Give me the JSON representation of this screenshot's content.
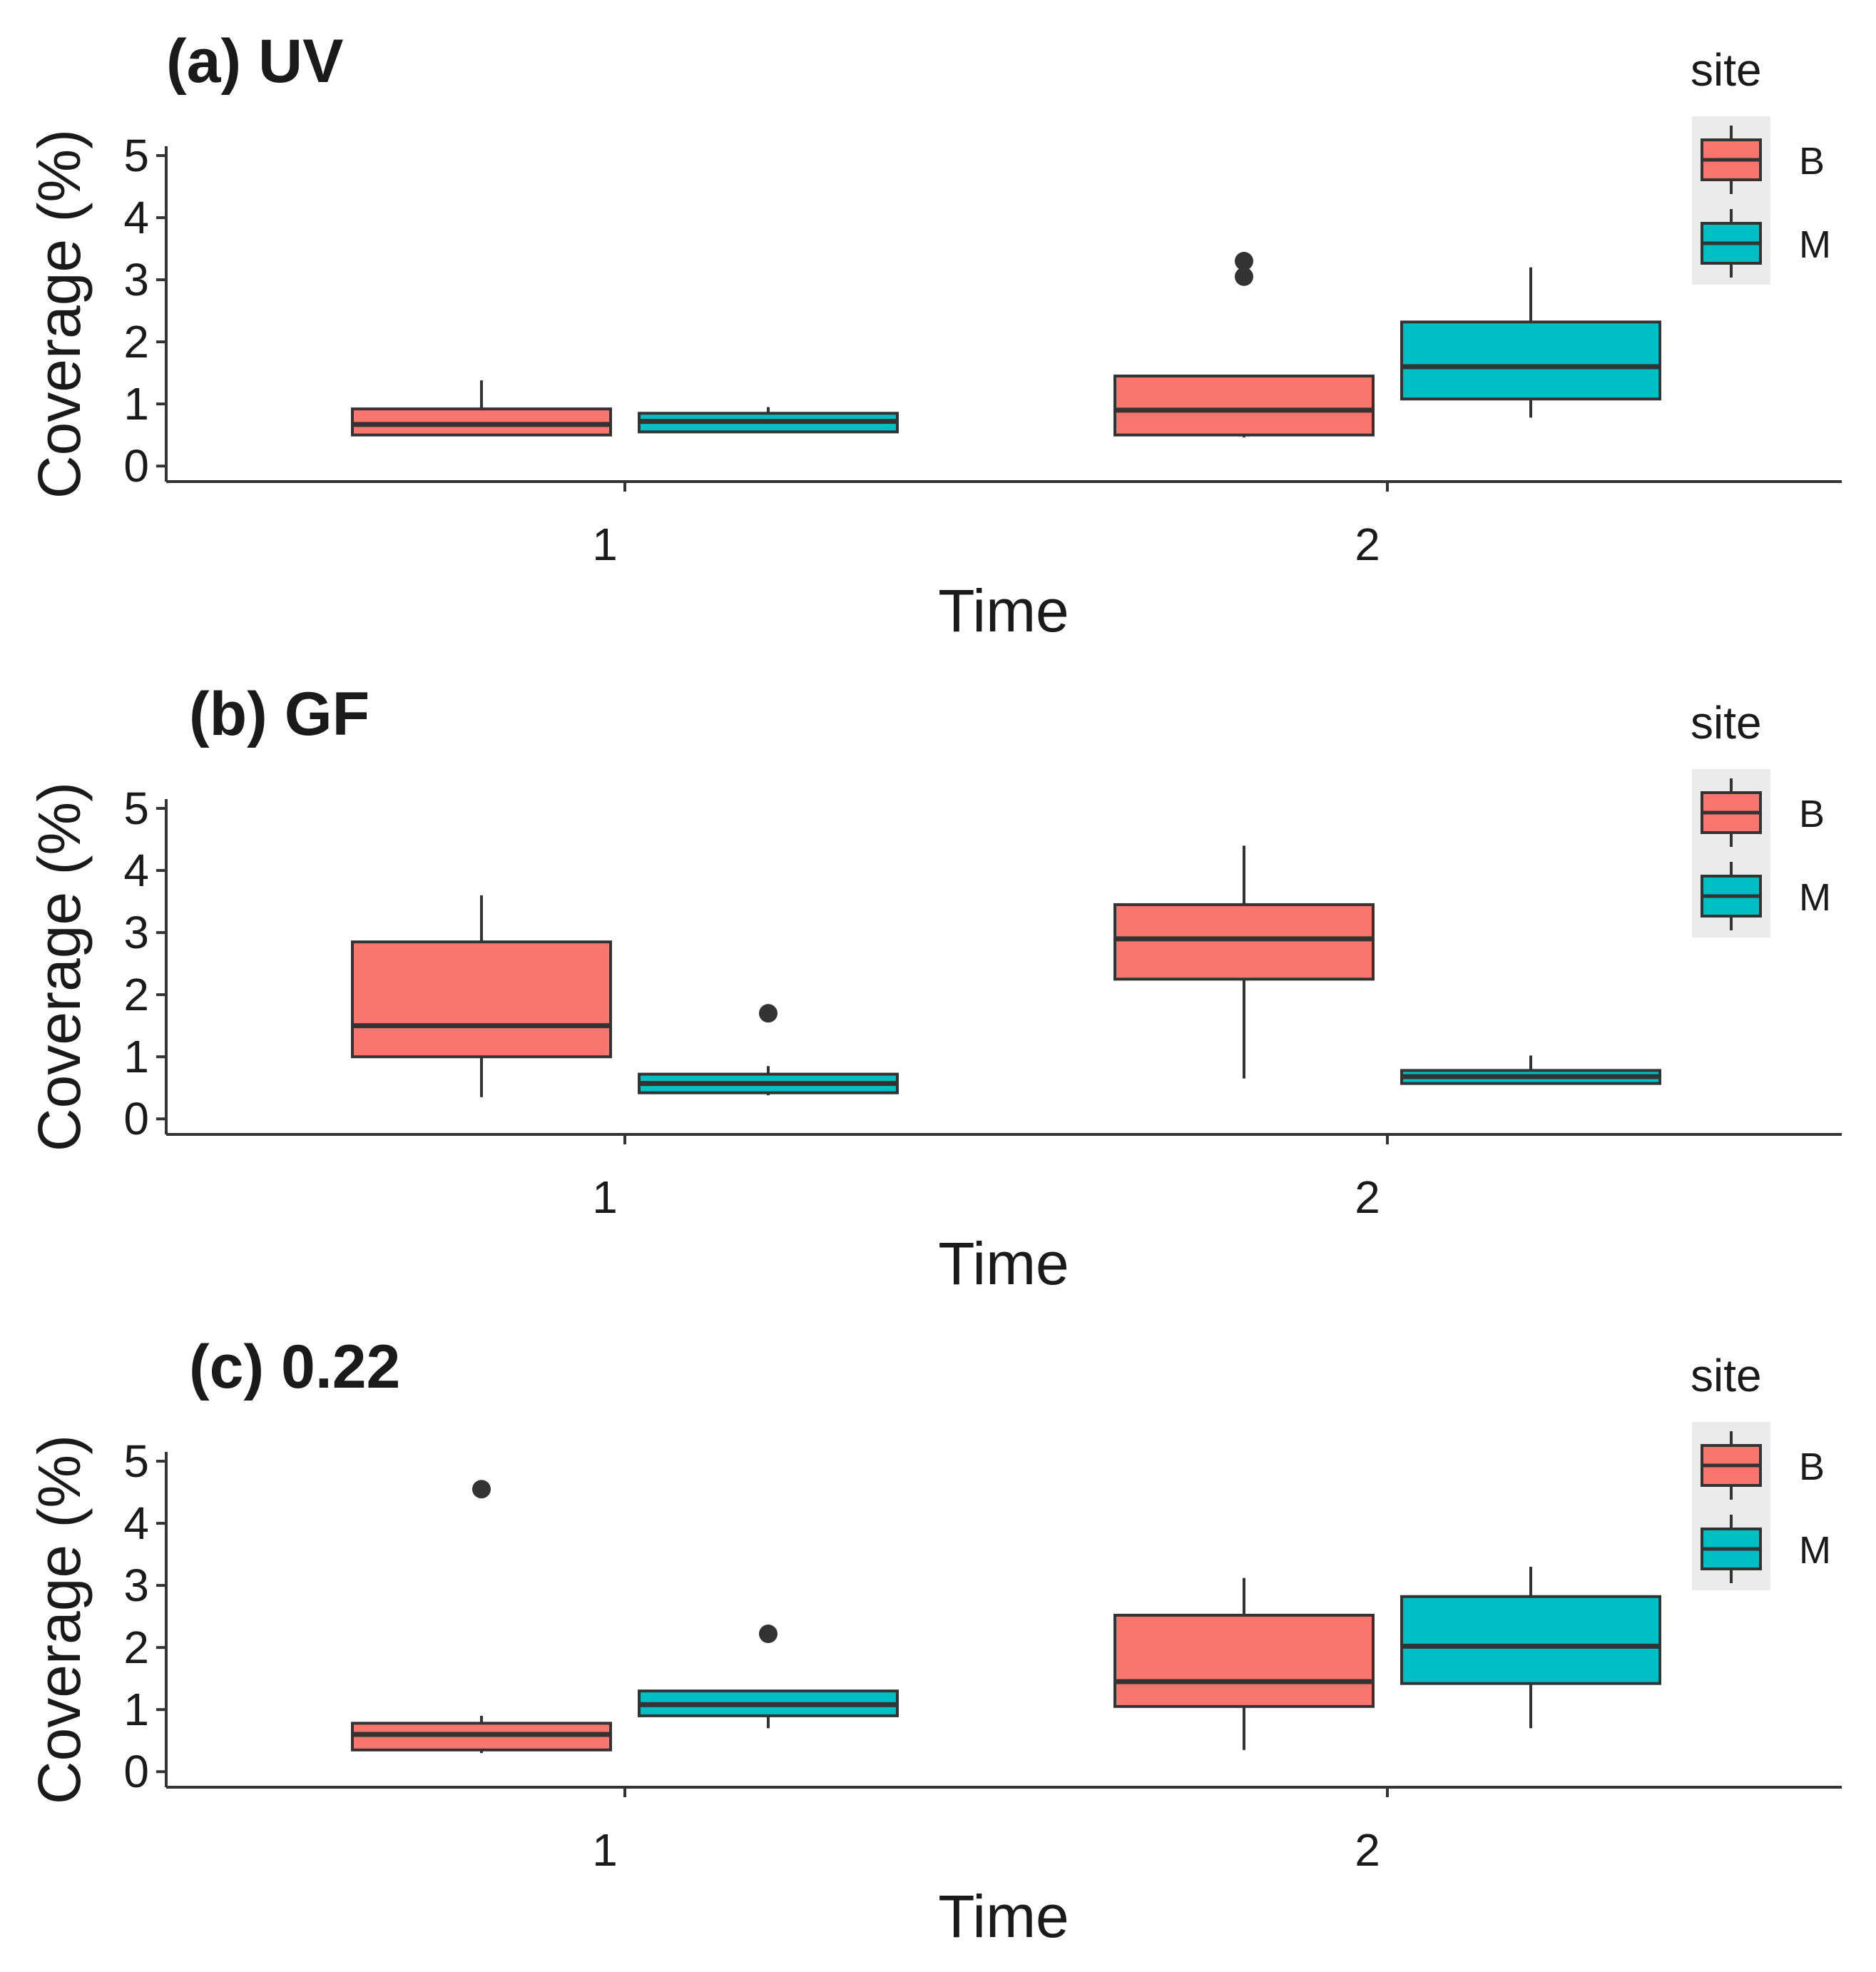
{
  "figure": {
    "title": ""
  },
  "chart_data": [
    {
      "type": "boxplot",
      "title": "(a) UV",
      "xlabel": "Time",
      "ylabel": "Coverage (%)",
      "categories": [
        "1",
        "2"
      ],
      "ylim": [
        -0.25,
        5.15
      ],
      "yticks": [
        0,
        1,
        2,
        3,
        4,
        5
      ],
      "legend": {
        "title": "site",
        "position": "top-right",
        "entries": [
          "B",
          "M"
        ]
      },
      "series": [
        {
          "name": "B",
          "color": "#F8766D",
          "boxes": [
            {
              "category": "1",
              "whisker_low": 0.48,
              "q1": 0.5,
              "median": 0.67,
              "q3": 0.92,
              "whisker_high": 1.38,
              "outliers": []
            },
            {
              "category": "2",
              "whisker_low": 0.46,
              "q1": 0.5,
              "median": 0.9,
              "q3": 1.45,
              "whisker_high": 1.45,
              "outliers": [
                3.05,
                3.3
              ]
            }
          ]
        },
        {
          "name": "M",
          "color": "#00BFC4",
          "boxes": [
            {
              "category": "1",
              "whisker_low": 0.55,
              "q1": 0.55,
              "median": 0.72,
              "q3": 0.85,
              "whisker_high": 0.95,
              "outliers": []
            },
            {
              "category": "2",
              "whisker_low": 0.78,
              "q1": 1.08,
              "median": 1.6,
              "q3": 2.32,
              "whisker_high": 3.2,
              "outliers": []
            }
          ]
        }
      ]
    },
    {
      "type": "boxplot",
      "title": "(b) GF",
      "xlabel": "Time",
      "ylabel": "Coverage (%)",
      "categories": [
        "1",
        "2"
      ],
      "ylim": [
        -0.25,
        5.15
      ],
      "yticks": [
        0,
        1,
        2,
        3,
        4,
        5
      ],
      "legend": {
        "title": "site",
        "position": "top-right",
        "entries": [
          "B",
          "M"
        ]
      },
      "series": [
        {
          "name": "B",
          "color": "#F8766D",
          "boxes": [
            {
              "category": "1",
              "whisker_low": 0.35,
              "q1": 1.0,
              "median": 1.5,
              "q3": 2.85,
              "whisker_high": 3.6,
              "outliers": []
            },
            {
              "category": "2",
              "whisker_low": 0.65,
              "q1": 2.25,
              "median": 2.9,
              "q3": 3.45,
              "whisker_high": 4.4,
              "outliers": []
            }
          ]
        },
        {
          "name": "M",
          "color": "#00BFC4",
          "boxes": [
            {
              "category": "1",
              "whisker_low": 0.38,
              "q1": 0.42,
              "median": 0.57,
              "q3": 0.72,
              "whisker_high": 0.85,
              "outliers": [
                1.7
              ]
            },
            {
              "category": "2",
              "whisker_low": 0.55,
              "q1": 0.57,
              "median": 0.68,
              "q3": 0.78,
              "whisker_high": 1.02,
              "outliers": []
            }
          ]
        }
      ]
    },
    {
      "type": "boxplot",
      "title": "(c) 0.22",
      "xlabel": "Time",
      "ylabel": "Coverage (%)",
      "categories": [
        "1",
        "2"
      ],
      "ylim": [
        -0.25,
        5.15
      ],
      "yticks": [
        0,
        1,
        2,
        3,
        4,
        5
      ],
      "legend": {
        "title": "site",
        "position": "top-right",
        "entries": [
          "B",
          "M"
        ]
      },
      "series": [
        {
          "name": "B",
          "color": "#F8766D",
          "boxes": [
            {
              "category": "1",
              "whisker_low": 0.3,
              "q1": 0.35,
              "median": 0.6,
              "q3": 0.78,
              "whisker_high": 0.9,
              "outliers": [
                4.55
              ]
            },
            {
              "category": "2",
              "whisker_low": 0.35,
              "q1": 1.05,
              "median": 1.45,
              "q3": 2.52,
              "whisker_high": 3.12,
              "outliers": []
            }
          ]
        },
        {
          "name": "M",
          "color": "#00BFC4",
          "boxes": [
            {
              "category": "1",
              "whisker_low": 0.7,
              "q1": 0.9,
              "median": 1.08,
              "q3": 1.3,
              "whisker_high": 1.3,
              "outliers": [
                2.22
              ]
            },
            {
              "category": "2",
              "whisker_low": 0.7,
              "q1": 1.42,
              "median": 2.02,
              "q3": 2.82,
              "whisker_high": 3.3,
              "outliers": []
            }
          ]
        }
      ]
    }
  ]
}
